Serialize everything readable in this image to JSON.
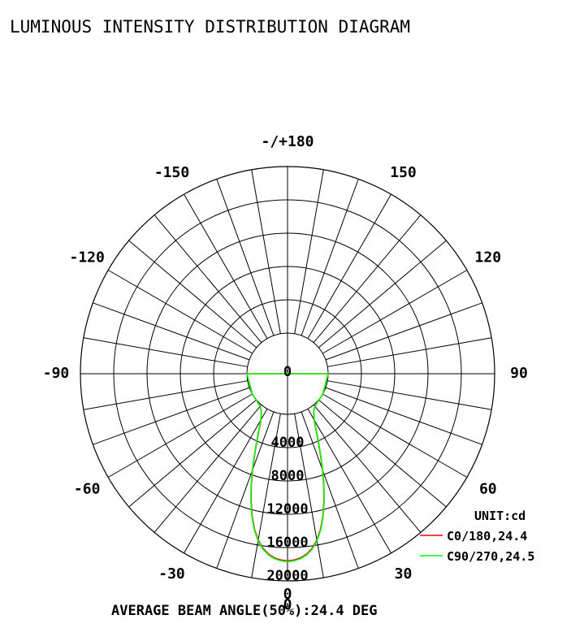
{
  "chart_data": {
    "type": "polar",
    "title": "LUMINOUS INTENSITY DISTRIBUTION DIAGRAM",
    "unit_label": "UNIT:cd",
    "footer": "AVERAGE BEAM ANGLE(50%):24.4 DEG",
    "angle_labels": [
      {
        "angle": 0,
        "text": "0"
      },
      {
        "angle": 30,
        "text": "30"
      },
      {
        "angle": 60,
        "text": "60"
      },
      {
        "angle": 90,
        "text": "90"
      },
      {
        "angle": 120,
        "text": "120"
      },
      {
        "angle": 150,
        "text": "150"
      },
      {
        "angle": 180,
        "text": "-/+180"
      },
      {
        "angle": -150,
        "text": "-150"
      },
      {
        "angle": -120,
        "text": "-120"
      },
      {
        "angle": -90,
        "text": "-90"
      },
      {
        "angle": -60,
        "text": "-60"
      },
      {
        "angle": -30,
        "text": "-30"
      }
    ],
    "radial_labels": [
      "0",
      "4000",
      "8000",
      "12000",
      "16000",
      "20000"
    ],
    "rmax": 20000,
    "grid_angle_step": 10,
    "series": [
      {
        "name": "C0/180,24.4",
        "color": "#ff0000",
        "angles": [
          0,
          2,
          4,
          6,
          8,
          10,
          12,
          14,
          16,
          18,
          20,
          22,
          24,
          26,
          28,
          30,
          35,
          40,
          45,
          50,
          60,
          90
        ],
        "values": [
          17600,
          17500,
          17300,
          16900,
          16300,
          15400,
          14200,
          12700,
          11000,
          9200,
          7400,
          5700,
          4300,
          3100,
          2200,
          1500,
          600,
          250,
          100,
          40,
          10,
          0
        ]
      },
      {
        "name": "C90/270,24.5",
        "color": "#00ff00",
        "angles": [
          0,
          2,
          4,
          6,
          8,
          10,
          12,
          14,
          16,
          18,
          20,
          22,
          24,
          26,
          28,
          30,
          35,
          40,
          45,
          50,
          60,
          90
        ],
        "values": [
          17700,
          17600,
          17400,
          17000,
          16400,
          15500,
          14300,
          12800,
          11100,
          9300,
          7500,
          5800,
          4400,
          3200,
          2300,
          1550,
          620,
          260,
          110,
          45,
          10,
          0
        ]
      }
    ]
  }
}
